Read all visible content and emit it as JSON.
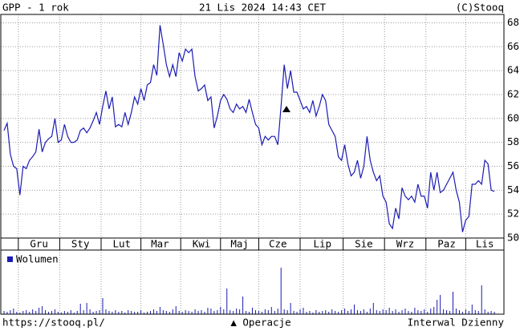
{
  "chart_data": [
    {
      "type": "line",
      "title": "GPP - 1 rok",
      "subtitle": "21 Lis 2024 14:43 CET",
      "source": "(C)Stooq",
      "series": [
        {
          "color": "#1c1cb4",
          "values": [
            59.0,
            59.6,
            57,
            56,
            55.8,
            53.6,
            56,
            55.8,
            56.5,
            56.8,
            57.2,
            59.1,
            57.2,
            58,
            58.3,
            58.5,
            60,
            58,
            58.2,
            59.5,
            58.5,
            58,
            58,
            58.2,
            59,
            59.2,
            58.8,
            59.2,
            59.8,
            60.5,
            59.5,
            61,
            62.3,
            60.8,
            61.8,
            59.3,
            59.5,
            59.3,
            60.5,
            59.5,
            60.5,
            61.8,
            61.2,
            62.5,
            61.5,
            62.8,
            63,
            64.5,
            63.6,
            67.8,
            66.2,
            64.5,
            63.5,
            64.5,
            63.5,
            65.5,
            64.8,
            65.8,
            65.5,
            65.8,
            63.5,
            62.3,
            62.5,
            62.8,
            61.5,
            61.8,
            59.2,
            60.2,
            61.5,
            62,
            61.6,
            60.8,
            60.5,
            61.2,
            60.8,
            61,
            60.5,
            61.6,
            60.5,
            59.5,
            59.2,
            57.8,
            58.5,
            58.2,
            58.5,
            58.5,
            57.8,
            61,
            64.5,
            62.5,
            64,
            62.2,
            62.2,
            61.5,
            60.8,
            61,
            60.5,
            61.5,
            60.2,
            61,
            62,
            61.5,
            59.5,
            59,
            58.5,
            56.8,
            56.5,
            57.8,
            56.2,
            55.2,
            55.5,
            56.5,
            55,
            56,
            58.5,
            56.5,
            55.5,
            54.8,
            55.2,
            53.5,
            53,
            51.2,
            50.8,
            52.5,
            51.6,
            54.2,
            53.5,
            53.2,
            53.5,
            53,
            54.5,
            53.5,
            53.5,
            52.5,
            55.5,
            54,
            55.5,
            53.8,
            54,
            54.5,
            55,
            55.5,
            54,
            53,
            50.5,
            51.5,
            51.8,
            54.5,
            54.5,
            54.8,
            54.5,
            56.5,
            56.2,
            54,
            53.9
          ]
        }
      ],
      "xlim": [
        -1,
        157
      ],
      "xticks": [
        {
          "value": 11,
          "label": "Gru"
        },
        {
          "value": 24,
          "label": "Sty"
        },
        {
          "value": 37,
          "label": "Lut"
        },
        {
          "value": 49,
          "label": "Mar"
        },
        {
          "value": 62,
          "label": "Kwi"
        },
        {
          "value": 74,
          "label": "Maj"
        },
        {
          "value": 86,
          "label": "Cze"
        },
        {
          "value": 100,
          "label": "Lip"
        },
        {
          "value": 113,
          "label": "Sie"
        },
        {
          "value": 126,
          "label": "Wrz"
        },
        {
          "value": 139,
          "label": "Paz"
        },
        {
          "value": 151,
          "label": "Lis"
        }
      ],
      "ylim": [
        50,
        68.7
      ],
      "yticks": [
        50,
        52,
        54,
        56,
        58,
        60,
        62,
        64,
        66,
        68
      ],
      "grid": true
    },
    {
      "type": "bar",
      "series": [
        {
          "name": "Wolumen",
          "color": "#1c1cb4",
          "values": [
            4,
            3,
            5,
            7,
            3,
            2,
            4,
            5,
            3,
            6,
            4,
            8,
            10,
            5,
            3,
            4,
            6,
            3,
            2,
            4,
            3,
            5,
            2,
            4,
            13,
            5,
            14,
            6,
            3,
            4,
            5,
            20,
            6,
            4,
            3,
            5,
            3,
            4,
            2,
            5,
            4,
            3,
            3,
            5,
            2,
            3,
            4,
            6,
            4,
            9,
            5,
            4,
            3,
            6,
            10,
            4,
            3,
            5,
            4,
            3,
            6,
            4,
            5,
            3,
            8,
            7,
            4,
            5,
            9,
            6,
            32,
            5,
            4,
            7,
            6,
            22,
            4,
            3,
            8,
            5,
            4,
            3,
            6,
            5,
            9,
            4,
            7,
            58,
            6,
            5,
            14,
            4,
            3,
            6,
            8,
            3,
            4,
            2,
            5,
            3,
            4,
            5,
            3,
            6,
            4,
            3,
            5,
            7,
            4,
            6,
            12,
            5,
            4,
            6,
            3,
            7,
            14,
            5,
            4,
            6,
            5,
            8,
            4,
            6,
            3,
            5,
            7,
            4,
            3,
            8,
            5,
            4,
            6,
            3,
            7,
            9,
            18,
            24,
            6,
            5,
            4,
            28,
            7,
            5,
            3,
            6,
            4,
            12,
            5,
            4,
            36,
            6,
            3,
            4,
            3
          ]
        }
      ],
      "ylim": [
        0,
        80
      ]
    }
  ],
  "footer": {
    "url": "https://stooq.pl/",
    "legend": "▲ Operacje",
    "interval": "Interwal Dzienny"
  }
}
